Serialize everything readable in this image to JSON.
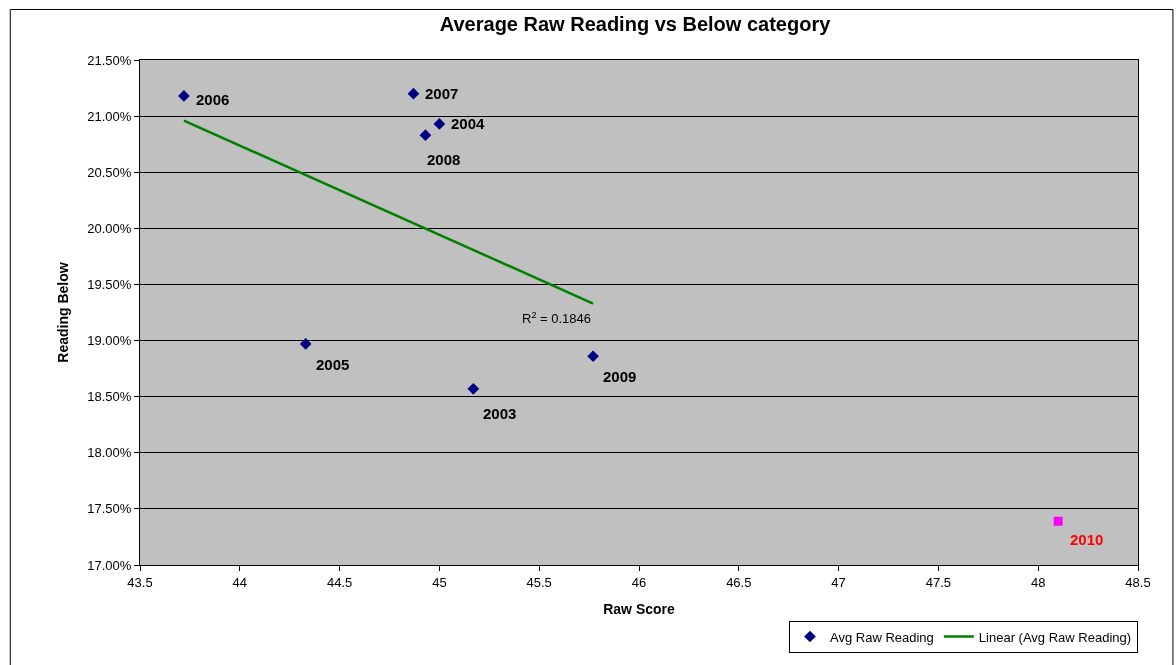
{
  "chart_data": {
    "type": "scatter",
    "title": "Average Raw Reading vs Below category",
    "xlabel": "Raw Score",
    "ylabel": "Reading Below",
    "series": [
      {
        "name": "Avg Raw Reading",
        "color": "#000080",
        "marker": "diamond",
        "x": [
          45.17,
          45.0,
          44.33,
          43.72,
          44.87,
          44.93,
          45.77
        ],
        "values": [
          18.57,
          20.93,
          18.97,
          21.18,
          21.2,
          20.83,
          18.86
        ]
      },
      {
        "color": "#ff00ff",
        "marker": "square",
        "x": [
          48.1
        ],
        "values": [
          17.39
        ]
      },
      {
        "name": "Linear (Avg Raw Reading)",
        "type": "line",
        "color": "#008000",
        "marker": "none",
        "x": [
          43.72,
          45.77
        ],
        "values": [
          20.96,
          19.33
        ]
      }
    ],
    "annotations": [
      {
        "text": "2003",
        "x": 45.17,
        "y": 18.57
      },
      {
        "text": "2004",
        "x": 45.0,
        "y": 20.93
      },
      {
        "text": "2005",
        "x": 44.33,
        "y": 18.97
      },
      {
        "text": "2006",
        "x": 43.72,
        "y": 21.18
      },
      {
        "text": "2007",
        "x": 44.87,
        "y": 21.2
      },
      {
        "text": "2008",
        "x": 44.93,
        "y": 20.83
      },
      {
        "text": "2009",
        "x": 45.77,
        "y": 18.86
      },
      {
        "text": "2010",
        "x": 48.1,
        "y": 17.39
      },
      {
        "text": "R$^{2}$ = 0.1846",
        "x": 45.77,
        "y": 19.33
      }
    ],
    "xlim": [
      43.5,
      48.5
    ],
    "xticks": [
      43.5,
      44,
      44.5,
      45,
      45.5,
      46,
      46.5,
      47,
      47.5,
      48,
      48.5
    ],
    "ylim": [
      17.0,
      21.5
    ],
    "yticks": [
      {
        "value": 17.0,
        "label": "17.00%"
      },
      {
        "value": 17.5,
        "label": "17.50%"
      },
      {
        "value": 18.0,
        "label": "18.00%"
      },
      {
        "value": 18.5,
        "label": "18.50%"
      },
      {
        "value": 19.0,
        "label": "19.00%"
      },
      {
        "value": 19.5,
        "label": "19.50%"
      },
      {
        "value": 20.0,
        "label": "20.00%"
      },
      {
        "value": 20.5,
        "label": "20.50%"
      },
      {
        "value": 21.0,
        "label": "21.00%"
      },
      {
        "value": 21.5,
        "label": "21.50%"
      }
    ],
    "grid": "y",
    "legend": "bottom right"
  }
}
